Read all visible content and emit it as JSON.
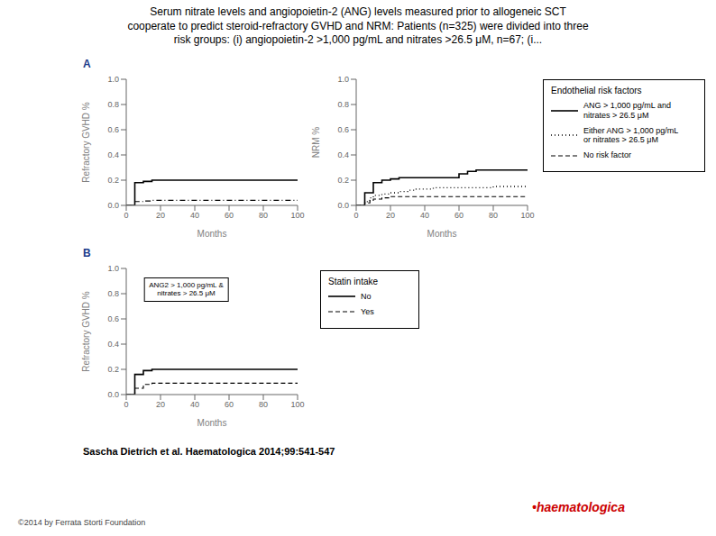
{
  "title": "Serum nitrate levels and angiopoietin-2 (ANG) levels measured prior to allogeneic SCT\ncooperate to predict steroid-refractory GVHD and NRM: Patients (n=325) were divided into three\nrisk groups: (i) angiopoietin-2 >1,000 pg/mL and nitrates >26.5 μM, n=67; (i...",
  "annotations": [
    {
      "text": "A",
      "color": "#1a3a8a"
    },
    {
      "text": "B",
      "color": "#1a3a8a"
    },
    {
      "text": "Sascha Dietrich et al. Haematologica 2014;99:541-547"
    },
    {
      "text": "©2014 by Ferrata Storti Foundation",
      "color": "#444444"
    },
    {
      "text": "•haematologica",
      "color": "#cc0000"
    }
  ],
  "chart_data": [
    {
      "type": "line",
      "x_label": "Months",
      "y_label": "Refractory GVHD %",
      "xlim": [
        0,
        100
      ],
      "ylim": [
        0.0,
        1.0
      ],
      "xticks": [
        0,
        20,
        40,
        60,
        80,
        100
      ],
      "yticks": [
        {
          "value": 0.0,
          "label": "0.0"
        },
        0.2,
        0.4,
        0.6,
        0.8,
        {
          "value": 1.0,
          "label": "1.0"
        }
      ],
      "grid": false,
      "series": [
        {
          "color": "#000000",
          "line_style": "solid",
          "x": [
            0,
            5,
            10,
            15,
            20,
            25,
            30,
            40,
            50,
            60,
            70,
            80,
            90,
            100
          ],
          "values": [
            0,
            0.18,
            0.19,
            0.2,
            0.2,
            0.2,
            0.2,
            0.2,
            0.2,
            0.2,
            0.2,
            0.2,
            0.2,
            0.2
          ]
        },
        {
          "color": "#000000",
          "line_style": "dashdot",
          "x": [
            0,
            5,
            10,
            15,
            20,
            25,
            30,
            40,
            50,
            60,
            70,
            80,
            90,
            100
          ],
          "values": [
            0,
            0.03,
            0.035,
            0.04,
            0.04,
            0.04,
            0.04,
            0.04,
            0.04,
            0.04,
            0.04,
            0.04,
            0.04,
            0.04
          ]
        }
      ]
    },
    {
      "type": "line",
      "x_label": "Months",
      "y_label": "NRM %",
      "xlim": [
        0,
        100
      ],
      "ylim": [
        0.0,
        1.0
      ],
      "xticks": [
        0,
        20,
        40,
        60,
        80,
        100
      ],
      "yticks": [
        {
          "value": 0.0,
          "label": "0.0"
        },
        0.2,
        0.4,
        0.6,
        0.8,
        {
          "value": 1.0,
          "label": "1.0"
        }
      ],
      "grid": false,
      "legend_title": "Endothelial risk factors",
      "series": [
        {
          "name": "ANG > 1,000 pg/mL and\nnitrates > 26.5 μM",
          "color": "#000000",
          "line_style": "solid",
          "x": [
            0,
            5,
            10,
            15,
            20,
            25,
            30,
            35,
            40,
            50,
            60,
            65,
            70,
            80,
            90,
            100
          ],
          "values": [
            0,
            0.1,
            0.18,
            0.2,
            0.21,
            0.22,
            0.22,
            0.22,
            0.22,
            0.22,
            0.25,
            0.27,
            0.28,
            0.28,
            0.28,
            0.28
          ]
        },
        {
          "name": "Either ANG > 1,000 pg/mL\nor nitrates > 26.5 μM",
          "color": "#000000",
          "line_style": "dotted",
          "x": [
            0,
            5,
            8,
            10,
            15,
            20,
            25,
            30,
            35,
            40,
            45,
            50,
            60,
            70,
            80,
            90,
            100
          ],
          "values": [
            0,
            0.03,
            0.06,
            0.08,
            0.09,
            0.1,
            0.11,
            0.12,
            0.13,
            0.13,
            0.14,
            0.14,
            0.14,
            0.14,
            0.15,
            0.15,
            0.15
          ]
        },
        {
          "name": "No risk factor",
          "color": "#000000",
          "line_style": "dashed",
          "x": [
            0,
            5,
            8,
            10,
            15,
            20,
            25,
            30,
            40,
            50,
            60,
            70,
            80,
            90,
            100
          ],
          "values": [
            0,
            0.02,
            0.04,
            0.05,
            0.06,
            0.07,
            0.07,
            0.07,
            0.07,
            0.07,
            0.07,
            0.07,
            0.07,
            0.07,
            0.07
          ]
        }
      ]
    },
    {
      "type": "line",
      "x_label": "Months",
      "y_label": "Refractory GVHD %",
      "xlim": [
        0,
        100
      ],
      "ylim": [
        0.0,
        1.0
      ],
      "xticks": [
        0,
        20,
        40,
        60,
        80,
        100
      ],
      "yticks": [
        {
          "value": 0.0,
          "label": "0.0"
        },
        0.2,
        0.4,
        0.6,
        0.8,
        {
          "value": 1.0,
          "label": "1.0"
        }
      ],
      "grid": false,
      "legend_title": "Statin intake",
      "annotations": [
        {
          "text": "ANG2 > 1,000 pg/mL &\nnitrates > 26.5 μM"
        }
      ],
      "series": [
        {
          "name": "No",
          "color": "#000000",
          "line_style": "solid",
          "x": [
            0,
            5,
            10,
            15,
            20,
            25,
            30,
            40,
            50,
            60,
            70,
            80,
            90,
            100
          ],
          "values": [
            0,
            0.16,
            0.19,
            0.2,
            0.2,
            0.2,
            0.2,
            0.2,
            0.2,
            0.2,
            0.2,
            0.2,
            0.2,
            0.2
          ]
        },
        {
          "name": "Yes",
          "color": "#000000",
          "line_style": "dashed",
          "x": [
            0,
            5,
            10,
            15,
            20,
            25,
            30,
            40,
            50,
            60,
            70,
            80,
            90,
            100
          ],
          "values": [
            0,
            0.05,
            0.08,
            0.09,
            0.09,
            0.09,
            0.09,
            0.09,
            0.09,
            0.09,
            0.09,
            0.09,
            0.09,
            0.09
          ]
        }
      ]
    }
  ]
}
